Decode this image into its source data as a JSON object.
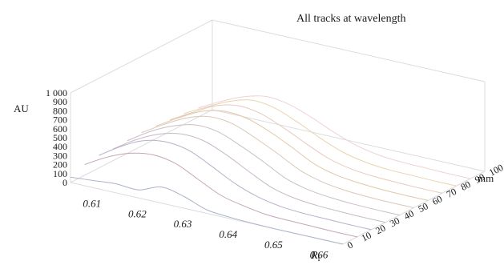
{
  "chart_data": {
    "type": "line",
    "view": "3d-waterfall",
    "title": "All tracks at wavelength",
    "y_label": "AU",
    "y_ticks": [
      "0",
      "100",
      "200",
      "300",
      "400",
      "500",
      "600",
      "700",
      "800",
      "900",
      "1 000"
    ],
    "ylim": [
      0,
      1000
    ],
    "x_label_main": "R",
    "x_label_sub": "f",
    "x_ticks": [
      "0.61",
      "0.62",
      "0.63",
      "0.64",
      "0.65",
      "0.66"
    ],
    "xlim": [
      0.605,
      0.665
    ],
    "z_label": "mm",
    "z_ticks": [
      "0",
      "10",
      "20",
      "30",
      "40",
      "50",
      "60",
      "70",
      "80",
      "90",
      "100"
    ],
    "zlim": [
      0,
      100
    ],
    "x": [
      0.605,
      0.61,
      0.615,
      0.62,
      0.625,
      0.63,
      0.635,
      0.64,
      0.645,
      0.65,
      0.655,
      0.66,
      0.665
    ],
    "series": [
      {
        "z": 0,
        "color": "#aab4c8",
        "values": [
          60,
          80,
          100,
          90,
          180,
          130,
          40,
          15,
          5,
          0,
          0,
          0,
          0
        ]
      },
      {
        "z": 10,
        "color": "#c4a5b8",
        "values": [
          120,
          260,
          360,
          400,
          360,
          240,
          120,
          60,
          20,
          10,
          5,
          0,
          0
        ]
      },
      {
        "z": 20,
        "color": "#b8b0c8",
        "values": [
          140,
          300,
          420,
          460,
          420,
          300,
          170,
          80,
          30,
          10,
          5,
          0,
          0
        ]
      },
      {
        "z": 30,
        "color": "#c8b8c8",
        "values": [
          130,
          290,
          410,
          470,
          450,
          350,
          220,
          100,
          40,
          15,
          5,
          0,
          0
        ]
      },
      {
        "z": 40,
        "color": "#cbbec6",
        "values": [
          140,
          300,
          420,
          490,
          470,
          370,
          250,
          120,
          50,
          20,
          5,
          0,
          0
        ]
      },
      {
        "z": 50,
        "color": "#d8c8b8",
        "values": [
          150,
          300,
          430,
          500,
          480,
          380,
          260,
          130,
          55,
          20,
          5,
          0,
          0
        ]
      },
      {
        "z": 60,
        "color": "#e0c8a8",
        "values": [
          140,
          290,
          420,
          480,
          460,
          370,
          250,
          120,
          50,
          20,
          5,
          0,
          0
        ]
      },
      {
        "z": 70,
        "color": "#e8c8c0",
        "values": [
          130,
          270,
          400,
          460,
          430,
          330,
          210,
          100,
          40,
          15,
          5,
          0,
          0
        ]
      },
      {
        "z": 80,
        "color": "#e8d4b0",
        "values": [
          120,
          250,
          370,
          440,
          410,
          310,
          190,
          90,
          35,
          10,
          5,
          0,
          0
        ]
      },
      {
        "z": 90,
        "color": "#efd2d2",
        "values": [
          100,
          230,
          340,
          400,
          370,
          280,
          170,
          80,
          30,
          10,
          5,
          0,
          0
        ]
      }
    ],
    "grid": false,
    "legend": "none"
  }
}
